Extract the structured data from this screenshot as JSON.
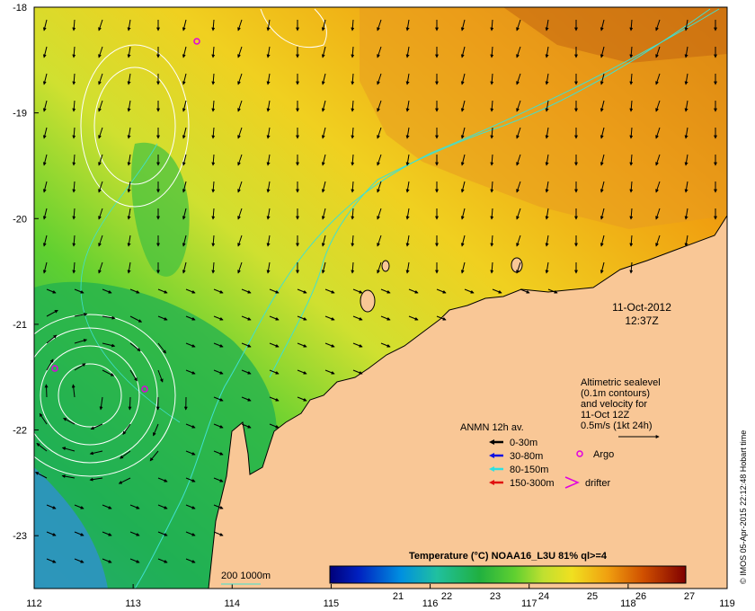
{
  "map": {
    "lon_range": [
      112,
      119
    ],
    "lat_range": [
      -23.5,
      -18
    ],
    "lon_ticks": [
      "112",
      "113",
      "114",
      "115",
      "116",
      "117",
      "118",
      "119"
    ],
    "lat_ticks": [
      "-18",
      "-19",
      "-20",
      "-21",
      "-22",
      "-23"
    ],
    "timestamp_date": "11-Oct-2012",
    "timestamp_time": "12:37Z",
    "land_color": "#f9c796",
    "coast_color": "#000000"
  },
  "sealevel_note": {
    "line1": "Altimetric sealevel",
    "line2": "(0.1m contours)",
    "line3": "and velocity for",
    "line4": "11-Oct 12Z",
    "line5": "0.5m/s (1kt 24h)"
  },
  "legend": {
    "title": "ANMN 12h av.",
    "items": [
      {
        "label": "0-30m",
        "color": "#000000"
      },
      {
        "label": "30-80m",
        "color": "#1010e0"
      },
      {
        "label": "80-150m",
        "color": "#30e0e0"
      },
      {
        "label": "150-300m",
        "color": "#e01010"
      }
    ],
    "argo_label": "Argo",
    "argo_color": "#e000e0",
    "drifter_label": "drifter",
    "drifter_color": "#e000e0"
  },
  "bathymetry": {
    "label": "200  1000m",
    "color": "#40e0d0"
  },
  "colorbar": {
    "title": "Temperature (°C) NOAA16_L3U 81% ql>=4",
    "ticks": [
      "21",
      "22",
      "23",
      "24",
      "25",
      "26",
      "27"
    ],
    "colors": [
      "#00008b",
      "#0030d0",
      "#0090e0",
      "#20c0b0",
      "#20b040",
      "#40d030",
      "#a0e030",
      "#e0e020",
      "#f0b010",
      "#e07000",
      "#c03000",
      "#8b0000"
    ]
  },
  "credit": "© IMOS 05-Apr-2015 22:12:48 Hobart time"
}
